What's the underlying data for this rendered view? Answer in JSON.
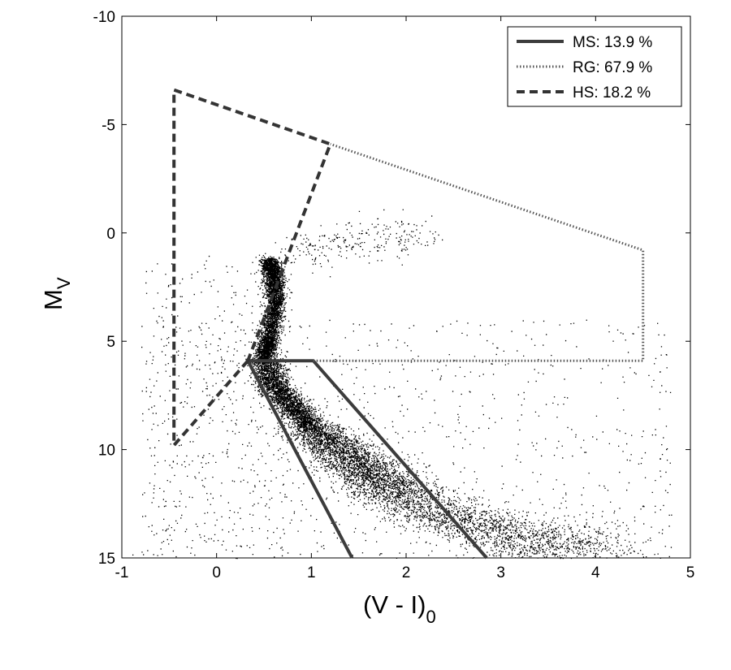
{
  "chart_data": {
    "type": "scatter",
    "title": "",
    "xlabel": {
      "main": "(V - I)",
      "sub": "0"
    },
    "ylabel": {
      "main": "M",
      "sub": "V"
    },
    "xlim": [
      -1,
      5
    ],
    "ylim": [
      -10,
      15
    ],
    "y_inverted": true,
    "grid": false,
    "legend_position": "top-right",
    "x_ticks": [
      "-1",
      "0",
      "1",
      "2",
      "3",
      "4",
      "5"
    ],
    "y_ticks": [
      "-10",
      "-5",
      "0",
      "5",
      "10",
      "15"
    ],
    "series": [
      {
        "name": "MS: 13.9 %",
        "style": "solid",
        "color": "#3c3c3c",
        "x": [
          1.43,
          0.33,
          1.02,
          2.85
        ],
        "y": [
          15.0,
          5.9,
          5.9,
          15.0
        ]
      },
      {
        "name": "RG: 67.9 %",
        "style": "dotted",
        "color": "#555555",
        "x": [
          1.02,
          4.5,
          4.5,
          1.2
        ],
        "y": [
          5.9,
          5.9,
          0.8,
          -4.1
        ]
      },
      {
        "name": "HS: 18.2 %",
        "style": "dashed",
        "color": "#333333",
        "x": [
          0.33,
          -0.45,
          -0.45,
          1.2,
          0.33
        ],
        "y": [
          5.9,
          9.8,
          -6.6,
          -4.1,
          5.9
        ]
      }
    ],
    "point_cloud": {
      "description_free": true,
      "color": "#000000",
      "ridge": [
        [
          0.55,
          1.2
        ],
        [
          0.6,
          2.0
        ],
        [
          0.62,
          3.2
        ],
        [
          0.55,
          4.8
        ],
        [
          0.5,
          5.8
        ],
        [
          0.6,
          7.0
        ],
        [
          0.8,
          8.0
        ],
        [
          1.0,
          9.0
        ],
        [
          1.3,
          10.0
        ],
        [
          1.6,
          11.0
        ],
        [
          1.9,
          12.0
        ],
        [
          2.3,
          12.9
        ],
        [
          2.8,
          13.6
        ],
        [
          3.4,
          14.2
        ],
        [
          4.0,
          14.6
        ]
      ]
    }
  }
}
